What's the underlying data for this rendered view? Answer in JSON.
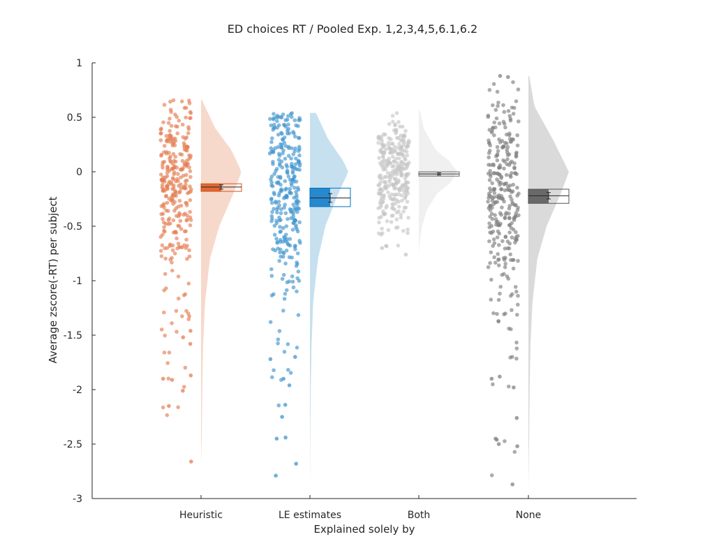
{
  "chart_data": {
    "type": "raincloud",
    "title": "ED choices RT / Pooled Exp. 1,2,3,4,5,6.1,6.2",
    "xlabel": "Explained solely by",
    "ylabel": "Average zscore(-RT) per subject",
    "ylim": [
      -3,
      1
    ],
    "yticks": [
      1,
      0.5,
      0,
      -0.5,
      -1,
      -1.5,
      -2,
      -2.5,
      -3
    ],
    "ytick_labels": [
      "1",
      "0.5",
      "0",
      "-0.5",
      "-1",
      "-1.5",
      "-2",
      "-2.5",
      "-3"
    ],
    "grid": false,
    "categories": [
      "Heuristic",
      "LE estimates",
      "Both",
      "None"
    ],
    "groups": [
      {
        "name": "Heuristic",
        "color": "#d95319",
        "mean": -0.14,
        "sem": 0.02,
        "box_low": -0.18,
        "box_high": -0.11,
        "approx_n": 300,
        "range": [
          -2.66,
          0.66
        ],
        "density": {
          "y": [
            0.66,
            0.4,
            0.2,
            0.0,
            -0.2,
            -0.5,
            -0.8,
            -1.2,
            -1.6,
            -2.0,
            -2.4,
            -2.7
          ],
          "d": [
            0.02,
            0.35,
            0.75,
            1.0,
            0.8,
            0.45,
            0.22,
            0.1,
            0.05,
            0.03,
            0.02,
            0.0
          ]
        },
        "outliers": [
          -2.01,
          -1.9,
          -1.87,
          -1.91,
          -2.15,
          -2.66,
          -1.58,
          -1.52,
          -1.46
        ]
      },
      {
        "name": "LE estimates",
        "color": "#0072bd",
        "mean": -0.24,
        "sem": 0.04,
        "box_low": -0.32,
        "box_high": -0.15,
        "approx_n": 300,
        "range": [
          -2.79,
          0.54
        ],
        "density": {
          "y": [
            0.54,
            0.3,
            0.1,
            0.0,
            -0.2,
            -0.5,
            -0.8,
            -1.2,
            -1.6,
            -2.0,
            -2.4,
            -2.9
          ],
          "d": [
            0.15,
            0.45,
            0.82,
            0.95,
            0.7,
            0.38,
            0.2,
            0.08,
            0.04,
            0.02,
            0.01,
            0.0
          ]
        },
        "outliers": [
          -1.96,
          -1.9,
          -2.14,
          -2.25,
          -2.44,
          -2.45,
          -2.68,
          -2.79,
          -1.7,
          -1.72
        ]
      },
      {
        "name": "Both",
        "color": "#b3b3b3",
        "mean": -0.02,
        "sem": 0.01,
        "box_low": -0.04,
        "box_high": 0.0,
        "approx_n": 300,
        "range": [
          -0.76,
          0.57
        ],
        "density": {
          "y": [
            0.57,
            0.4,
            0.2,
            0.1,
            0.0,
            -0.1,
            -0.2,
            -0.35,
            -0.5,
            -0.65,
            -0.78
          ],
          "d": [
            0.02,
            0.12,
            0.42,
            0.75,
            0.95,
            0.78,
            0.45,
            0.2,
            0.08,
            0.02,
            0.0
          ]
        },
        "outliers": [
          -0.76,
          -0.7,
          -0.68
        ]
      },
      {
        "name": "None",
        "color": "#555555",
        "mean": -0.22,
        "sem": 0.03,
        "box_low": -0.29,
        "box_high": -0.16,
        "approx_n": 300,
        "range": [
          -2.87,
          0.88
        ],
        "density": {
          "y": [
            0.88,
            0.6,
            0.3,
            0.0,
            -0.2,
            -0.5,
            -0.8,
            -1.2,
            -1.6,
            -2.0,
            -2.4,
            -2.9
          ],
          "d": [
            0.02,
            0.15,
            0.6,
            1.0,
            0.8,
            0.45,
            0.22,
            0.1,
            0.05,
            0.03,
            0.02,
            0.0
          ]
        },
        "outliers": [
          0.88,
          0.87,
          -2.87,
          -2.26,
          -2.46,
          -2.45,
          -2.5,
          -2.52,
          -1.98,
          -1.9,
          -1.88
        ]
      }
    ]
  }
}
